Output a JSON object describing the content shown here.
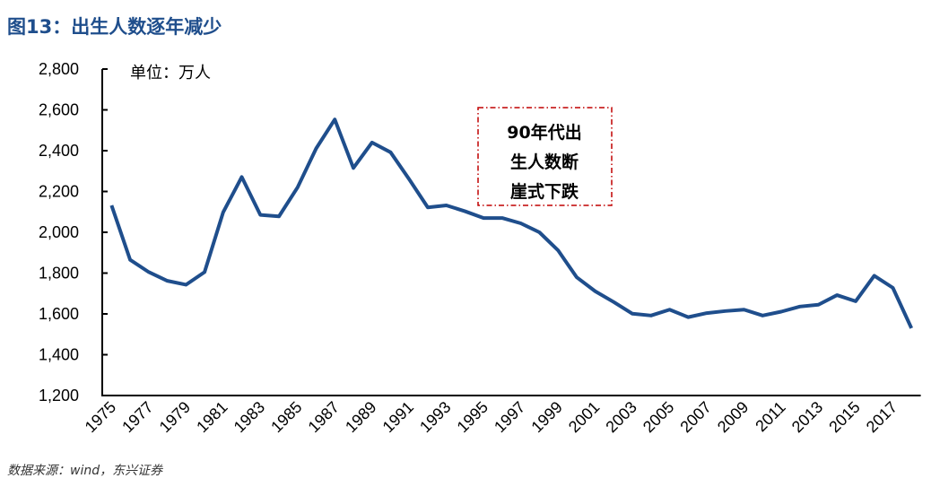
{
  "title": "图13：出生人数逐年减少",
  "source": "数据来源：wind，东兴证券",
  "chart_data": {
    "type": "line",
    "title": "图13：出生人数逐年减少",
    "unit_label": "单位：万人",
    "annotation": [
      "90年代出",
      "生人数断",
      "崖式下跌"
    ],
    "annotation_color": "#c00000",
    "line_color": "#1f4e8c",
    "x": [
      1975,
      1976,
      1977,
      1978,
      1979,
      1980,
      1981,
      1982,
      1983,
      1984,
      1985,
      1986,
      1987,
      1988,
      1989,
      1990,
      1991,
      1992,
      1993,
      1994,
      1995,
      1996,
      1997,
      1998,
      1999,
      2000,
      2001,
      2002,
      2003,
      2004,
      2005,
      2006,
      2007,
      2008,
      2009,
      2010,
      2011,
      2012,
      2013,
      2014,
      2015,
      2016,
      2017,
      2018
    ],
    "series": [
      {
        "values": [
          2132,
          1865,
          1805,
          1762,
          1743,
          1805,
          2098,
          2271,
          2085,
          2078,
          2220,
          2411,
          2553,
          2315,
          2440,
          2392,
          2260,
          2122,
          2132,
          2103,
          2070,
          2070,
          2044,
          2000,
          1912,
          1780,
          1711,
          1658,
          1601,
          1592,
          1621,
          1584,
          1604,
          1614,
          1621,
          1592,
          1611,
          1636,
          1645,
          1692,
          1662,
          1787,
          1728,
          1530
        ]
      }
    ],
    "x_tick_labels": [
      "1975",
      "1977",
      "1979",
      "1981",
      "1983",
      "1985",
      "1987",
      "1989",
      "1991",
      "1993",
      "1995",
      "1997",
      "1999",
      "2001",
      "2003",
      "2005",
      "2007",
      "2009",
      "2011",
      "2013",
      "2015",
      "2017"
    ],
    "y_tick_labels": [
      "1,200",
      "1,400",
      "1,600",
      "1,800",
      "2,000",
      "2,200",
      "2,400",
      "2,600",
      "2,800"
    ],
    "y_ticks": [
      1200,
      1400,
      1600,
      1800,
      2000,
      2200,
      2400,
      2600,
      2800
    ],
    "ylim": [
      1200,
      2800
    ],
    "grid": false,
    "legend": "none"
  }
}
